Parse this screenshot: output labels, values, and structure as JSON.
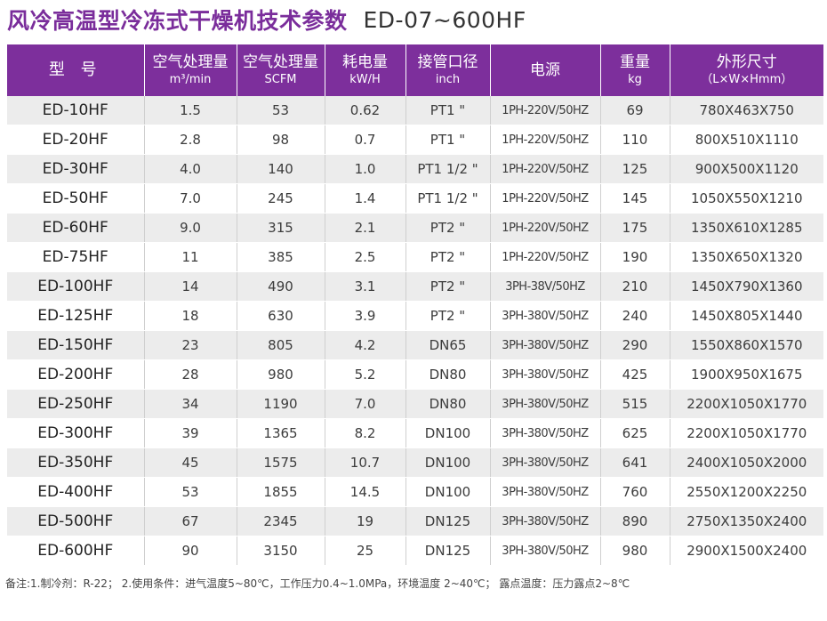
{
  "title": {
    "main": "风冷高温型冷冻式干燥机技术参数",
    "model_range": "ED-07~600HF"
  },
  "columns": [
    {
      "main": "型 号",
      "sub": ""
    },
    {
      "main": "空气处理量",
      "sub": "m³/min"
    },
    {
      "main": "空气处理量",
      "sub": "SCFM"
    },
    {
      "main": "耗电量",
      "sub": "kW/H"
    },
    {
      "main": "接管口径",
      "sub": "inch"
    },
    {
      "main": "电源",
      "sub": ""
    },
    {
      "main": "重量",
      "sub": "kg"
    },
    {
      "main": "外形尺寸",
      "sub": "（L×W×Hmm）"
    }
  ],
  "rows": [
    [
      "ED-10HF",
      "1.5",
      "53",
      "0.62",
      "PT1 \"",
      "1PH-220V/50HZ",
      "69",
      "780X463X750"
    ],
    [
      "ED-20HF",
      "2.8",
      "98",
      "0.7",
      "PT1 \"",
      "1PH-220V/50HZ",
      "110",
      "800X510X1110"
    ],
    [
      "ED-30HF",
      "4.0",
      "140",
      "1.0",
      "PT1 1/2 \"",
      "1PH-220V/50HZ",
      "125",
      "900X500X1120"
    ],
    [
      "ED-50HF",
      "7.0",
      "245",
      "1.4",
      "PT1 1/2 \"",
      "1PH-220V/50HZ",
      "145",
      "1050X550X1210"
    ],
    [
      "ED-60HF",
      "9.0",
      "315",
      "2.1",
      "PT2 \"",
      "1PH-220V/50HZ",
      "175",
      "1350X610X1285"
    ],
    [
      "ED-75HF",
      "11",
      "385",
      "2.5",
      "PT2 \"",
      "1PH-220V/50HZ",
      "190",
      "1350X650X1320"
    ],
    [
      "ED-100HF",
      "14",
      "490",
      "3.1",
      "PT2 \"",
      "3PH-38V/50HZ",
      "210",
      "1450X790X1360"
    ],
    [
      "ED-125HF",
      "18",
      "630",
      "3.9",
      "PT2 \"",
      "3PH-380V/50HZ",
      "240",
      "1450X805X1440"
    ],
    [
      "ED-150HF",
      "23",
      "805",
      "4.2",
      "DN65",
      "3PH-380V/50HZ",
      "290",
      "1550X860X1570"
    ],
    [
      "ED-200HF",
      "28",
      "980",
      "5.2",
      "DN80",
      "3PH-380V/50HZ",
      "425",
      "1900X950X1675"
    ],
    [
      "ED-250HF",
      "34",
      "1190",
      "7.0",
      "DN80",
      "3PH-380V/50HZ",
      "515",
      "2200X1050X1770"
    ],
    [
      "ED-300HF",
      "39",
      "1365",
      "8.2",
      "DN100",
      "3PH-380V/50HZ",
      "625",
      "2200X1050X1770"
    ],
    [
      "ED-350HF",
      "45",
      "1575",
      "10.7",
      "DN100",
      "3PH-380V/50HZ",
      "641",
      "2400X1050X2000"
    ],
    [
      "ED-400HF",
      "53",
      "1855",
      "14.5",
      "DN100",
      "3PH-380V/50HZ",
      "760",
      "2550X1200X2250"
    ],
    [
      "ED-500HF",
      "67",
      "2345",
      "19",
      "DN125",
      "3PH-380V/50HZ",
      "890",
      "2750X1350X2400"
    ],
    [
      "ED-600HF",
      "90",
      "3150",
      "25",
      "DN125",
      "3PH-380V/50HZ",
      "980",
      "2900X1500X2400"
    ]
  ],
  "footnote": "备注:1.制冷剂：R-22；  2.使用条件：进气温度5~80℃，工作压力0.4~1.0MPa，环境温度 2~40℃；  露点温度：压力露点2~8℃",
  "colors": {
    "header_bg": "#7d2f9c",
    "title_accent": "#7a2d9b",
    "row_alt_bg": "#ececec"
  }
}
